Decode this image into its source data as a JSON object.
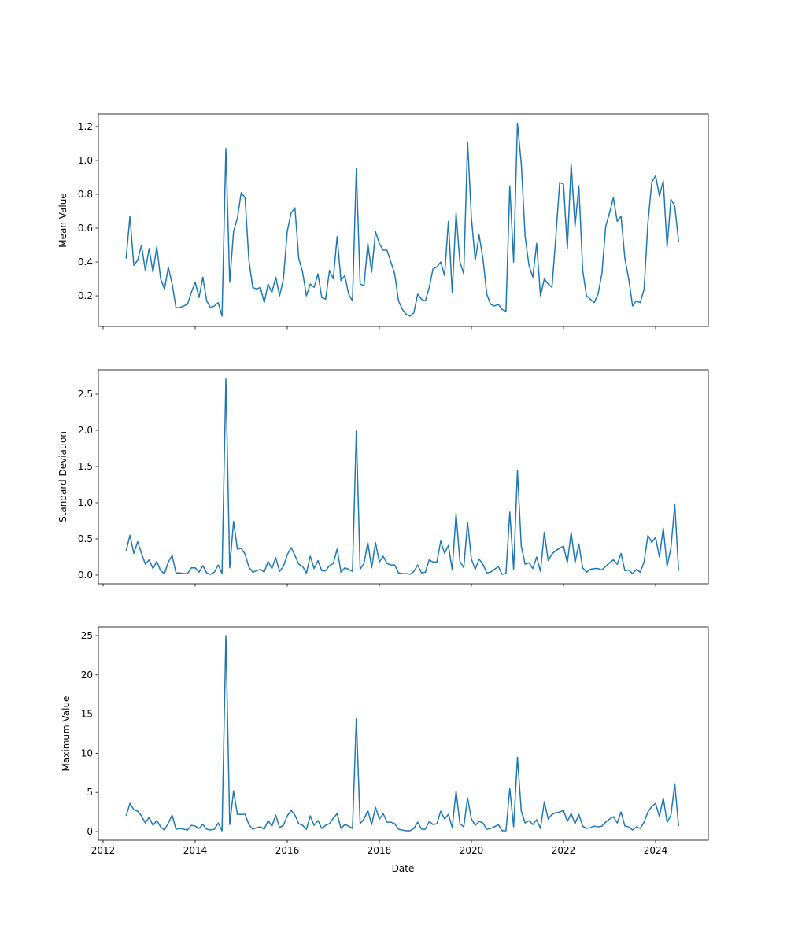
{
  "chart_data": {
    "type": "line",
    "layout": "3 stacked subplots, shared x axis",
    "x_start": "2012-07",
    "frequency": "monthly",
    "xlabel": "Date",
    "x_ticks": [
      "2012",
      "2014",
      "2016",
      "2018",
      "2020",
      "2022",
      "2024"
    ],
    "color": "#1f77b4",
    "subplots": [
      {
        "ylabel": "Mean Value",
        "ylim": [
          0.019,
          1.274
        ],
        "y_ticks": [
          "0.2",
          "0.4",
          "0.6",
          "0.8",
          "1.0",
          "1.2"
        ],
        "values": [
          0.42,
          0.67,
          0.38,
          0.41,
          0.5,
          0.35,
          0.48,
          0.34,
          0.49,
          0.3,
          0.24,
          0.37,
          0.27,
          0.13,
          0.13,
          0.14,
          0.15,
          0.22,
          0.28,
          0.19,
          0.31,
          0.17,
          0.13,
          0.14,
          0.16,
          0.08,
          1.07,
          0.28,
          0.58,
          0.66,
          0.81,
          0.78,
          0.41,
          0.25,
          0.24,
          0.25,
          0.16,
          0.27,
          0.22,
          0.31,
          0.2,
          0.3,
          0.58,
          0.69,
          0.72,
          0.42,
          0.34,
          0.2,
          0.27,
          0.25,
          0.33,
          0.19,
          0.18,
          0.35,
          0.3,
          0.55,
          0.29,
          0.32,
          0.21,
          0.17,
          0.95,
          0.27,
          0.26,
          0.51,
          0.34,
          0.58,
          0.51,
          0.47,
          0.47,
          0.4,
          0.33,
          0.17,
          0.12,
          0.09,
          0.08,
          0.1,
          0.21,
          0.18,
          0.17,
          0.25,
          0.36,
          0.37,
          0.4,
          0.32,
          0.64,
          0.22,
          0.69,
          0.4,
          0.33,
          1.11,
          0.66,
          0.41,
          0.56,
          0.42,
          0.21,
          0.15,
          0.14,
          0.15,
          0.12,
          0.11,
          0.85,
          0.4,
          1.22,
          0.98,
          0.55,
          0.38,
          0.31,
          0.51,
          0.2,
          0.3,
          0.27,
          0.25,
          0.55,
          0.87,
          0.86,
          0.48,
          0.98,
          0.61,
          0.85,
          0.35,
          0.2,
          0.18,
          0.16,
          0.21,
          0.33,
          0.61,
          0.69,
          0.78,
          0.64,
          0.67,
          0.42,
          0.3,
          0.14,
          0.17,
          0.16,
          0.24,
          0.63,
          0.87,
          0.91,
          0.79,
          0.88,
          0.49,
          0.77,
          0.73,
          0.52
        ]
      },
      {
        "ylabel": "Standard Deviation",
        "ylim": [
          -0.12,
          2.837
        ],
        "y_ticks": [
          "0.0",
          "0.5",
          "1.0",
          "1.5",
          "2.0",
          "2.5"
        ],
        "values": [
          0.33,
          0.55,
          0.3,
          0.46,
          0.3,
          0.15,
          0.21,
          0.09,
          0.19,
          0.06,
          0.02,
          0.18,
          0.27,
          0.03,
          0.03,
          0.02,
          0.02,
          0.1,
          0.1,
          0.04,
          0.13,
          0.03,
          0.01,
          0.04,
          0.14,
          0.02,
          2.71,
          0.1,
          0.74,
          0.36,
          0.37,
          0.29,
          0.11,
          0.04,
          0.06,
          0.08,
          0.04,
          0.19,
          0.09,
          0.24,
          0.05,
          0.12,
          0.28,
          0.38,
          0.27,
          0.15,
          0.12,
          0.03,
          0.26,
          0.09,
          0.2,
          0.06,
          0.06,
          0.13,
          0.16,
          0.36,
          0.04,
          0.1,
          0.08,
          0.05,
          1.99,
          0.08,
          0.16,
          0.45,
          0.1,
          0.45,
          0.18,
          0.26,
          0.16,
          0.14,
          0.14,
          0.03,
          0.02,
          0.02,
          0.01,
          0.05,
          0.14,
          0.03,
          0.04,
          0.21,
          0.18,
          0.18,
          0.47,
          0.3,
          0.41,
          0.07,
          0.85,
          0.19,
          0.1,
          0.73,
          0.22,
          0.08,
          0.22,
          0.15,
          0.03,
          0.04,
          0.08,
          0.12,
          0.01,
          0.02,
          0.87,
          0.08,
          1.44,
          0.4,
          0.15,
          0.17,
          0.09,
          0.25,
          0.05,
          0.59,
          0.2,
          0.29,
          0.34,
          0.37,
          0.4,
          0.17,
          0.59,
          0.17,
          0.43,
          0.1,
          0.04,
          0.08,
          0.09,
          0.09,
          0.07,
          0.12,
          0.17,
          0.21,
          0.15,
          0.3,
          0.06,
          0.07,
          0.02,
          0.08,
          0.04,
          0.18,
          0.55,
          0.45,
          0.52,
          0.25,
          0.65,
          0.12,
          0.38,
          0.98,
          0.06
        ]
      },
      {
        "ylabel": "Maximum Value",
        "ylim": [
          -1.1,
          26.1
        ],
        "y_ticks": [
          "0",
          "5",
          "10",
          "15",
          "20",
          "25"
        ],
        "values": [
          2.0,
          3.6,
          2.8,
          2.6,
          2.0,
          1.1,
          1.8,
          0.8,
          1.4,
          0.6,
          0.2,
          1.1,
          2.1,
          0.3,
          0.4,
          0.3,
          0.2,
          0.8,
          0.7,
          0.4,
          0.9,
          0.3,
          0.2,
          0.3,
          1.1,
          0.1,
          25.0,
          0.9,
          5.2,
          2.2,
          2.2,
          2.2,
          0.9,
          0.3,
          0.5,
          0.6,
          0.3,
          1.4,
          0.7,
          2.1,
          0.5,
          0.8,
          2.0,
          2.7,
          2.1,
          1.0,
          0.8,
          0.3,
          2.0,
          0.8,
          1.4,
          0.4,
          0.8,
          1.0,
          1.7,
          2.3,
          0.4,
          0.9,
          0.7,
          0.4,
          14.4,
          1.0,
          1.6,
          2.7,
          0.9,
          3.1,
          1.6,
          2.3,
          1.2,
          1.2,
          1.0,
          0.3,
          0.2,
          0.1,
          0.1,
          0.4,
          1.2,
          0.3,
          0.3,
          1.3,
          0.9,
          1.0,
          2.6,
          1.6,
          2.2,
          0.5,
          5.2,
          1.0,
          0.6,
          4.3,
          1.6,
          0.8,
          1.3,
          1.1,
          0.3,
          0.4,
          0.6,
          0.9,
          0.1,
          0.1,
          5.5,
          0.6,
          9.5,
          2.6,
          1.1,
          1.4,
          0.9,
          1.5,
          0.4,
          3.8,
          1.6,
          2.2,
          2.4,
          2.5,
          2.7,
          1.3,
          2.3,
          1.0,
          2.2,
          0.7,
          0.4,
          0.5,
          0.7,
          0.6,
          0.7,
          1.2,
          1.6,
          1.9,
          1.1,
          2.5,
          0.7,
          0.6,
          0.2,
          0.6,
          0.4,
          1.2,
          2.5,
          3.2,
          3.6,
          1.9,
          4.3,
          1.2,
          2.1,
          6.1,
          0.7
        ]
      }
    ]
  }
}
